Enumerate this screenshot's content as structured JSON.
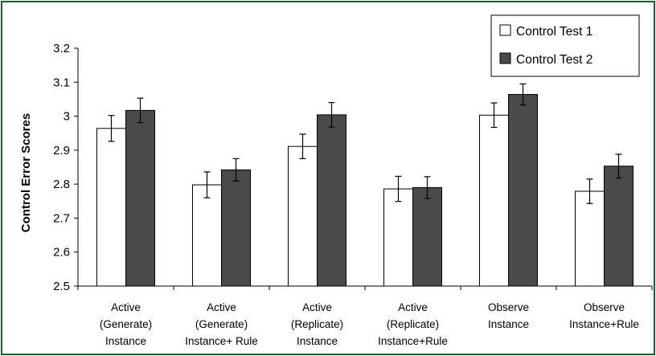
{
  "chart_data": {
    "type": "bar",
    "title": "",
    "xlabel": "",
    "ylabel": "Control Error Scores",
    "ylim": [
      2.5,
      3.2
    ],
    "yticks": [
      "2.5",
      "2.6",
      "2.7",
      "2.8",
      "2.9",
      "3",
      "3.1",
      "3.2"
    ],
    "grid": false,
    "legend_position": "top-right",
    "categories": [
      [
        "Active",
        "(Generate)",
        "Instance"
      ],
      [
        "Active",
        "(Generate)",
        "Instance+ Rule"
      ],
      [
        "Active",
        "(Replicate)",
        "Instance"
      ],
      [
        "Active",
        "(Replicate)",
        "Instance+Rule"
      ],
      [
        "Observe",
        "Instance"
      ],
      [
        "Observe",
        "Instance+Rule"
      ]
    ],
    "series": [
      {
        "name": "Control Test 1",
        "color": "#ffffff",
        "values": [
          2.964,
          2.798,
          2.911,
          2.786,
          3.003,
          2.779
        ],
        "error": [
          0.038,
          0.038,
          0.036,
          0.037,
          0.036,
          0.036
        ]
      },
      {
        "name": "Control Test 2",
        "color": "#4a4a4a",
        "values": [
          3.017,
          2.842,
          3.004,
          2.79,
          3.064,
          2.853
        ],
        "error": [
          0.036,
          0.033,
          0.036,
          0.032,
          0.031,
          0.035
        ]
      }
    ]
  }
}
